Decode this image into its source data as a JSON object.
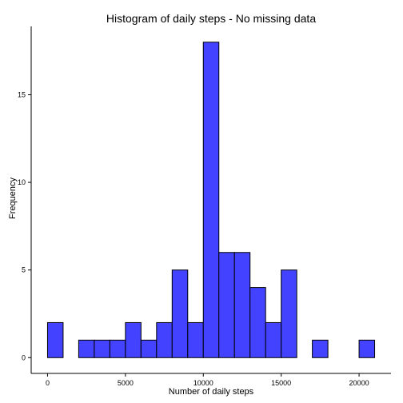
{
  "chart_data": {
    "type": "bar",
    "title": "Histogram of daily steps - No missing data",
    "xlabel": "Number of daily steps",
    "ylabel": "Frequency",
    "bin_width": 1000,
    "bins": [
      {
        "start": 0,
        "count": 2
      },
      {
        "start": 1000,
        "count": 0
      },
      {
        "start": 2000,
        "count": 1
      },
      {
        "start": 3000,
        "count": 1
      },
      {
        "start": 4000,
        "count": 1
      },
      {
        "start": 5000,
        "count": 2
      },
      {
        "start": 6000,
        "count": 1
      },
      {
        "start": 7000,
        "count": 2
      },
      {
        "start": 8000,
        "count": 5
      },
      {
        "start": 9000,
        "count": 2
      },
      {
        "start": 10000,
        "count": 18
      },
      {
        "start": 11000,
        "count": 6
      },
      {
        "start": 12000,
        "count": 6
      },
      {
        "start": 13000,
        "count": 4
      },
      {
        "start": 14000,
        "count": 2
      },
      {
        "start": 15000,
        "count": 5
      },
      {
        "start": 16000,
        "count": 0
      },
      {
        "start": 17000,
        "count": 1
      },
      {
        "start": 18000,
        "count": 0
      },
      {
        "start": 19000,
        "count": 0
      },
      {
        "start": 20000,
        "count": 1
      }
    ],
    "xlim": [
      -1050,
      22050
    ],
    "ylim": [
      -0.9,
      18.9
    ],
    "x_ticks": [
      0,
      5000,
      10000,
      15000,
      20000
    ],
    "x_tick_labels": [
      "0",
      "5000",
      "10000",
      "15000",
      "20000"
    ],
    "y_ticks": [
      0,
      5,
      10,
      15
    ],
    "y_tick_labels": [
      "0",
      "5",
      "10",
      "15"
    ],
    "grid": false,
    "colors": {
      "bar_fill": "#4343ff",
      "bar_stroke": "#000000"
    }
  }
}
